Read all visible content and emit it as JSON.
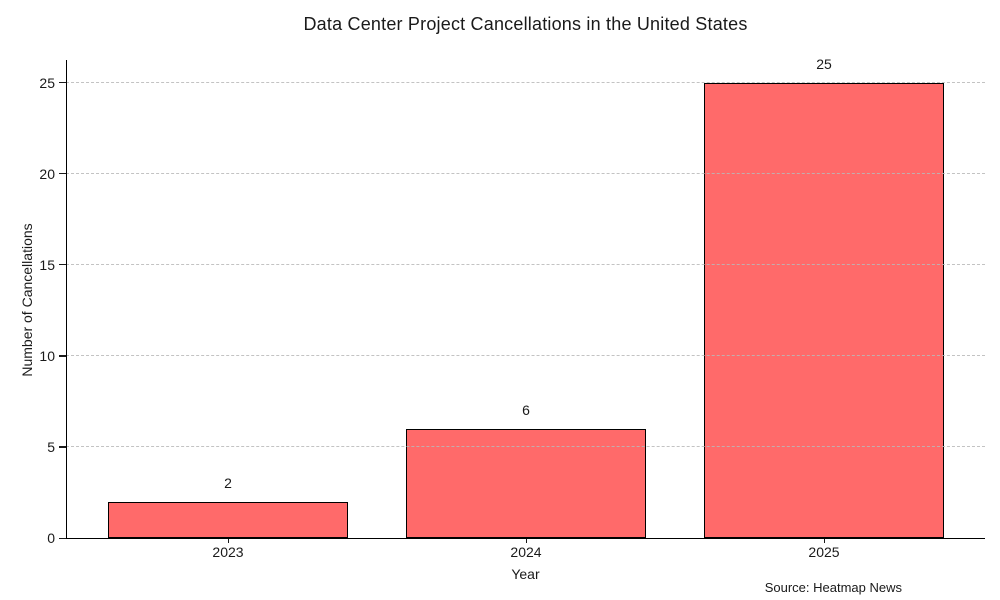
{
  "source": "Source: Heatmap News",
  "chart_data": {
    "type": "bar",
    "title": "Data Center Project Cancellations in the United States",
    "categories": [
      "2023",
      "2024",
      "2025"
    ],
    "values": [
      2,
      6,
      25
    ],
    "xlabel": "Year",
    "ylabel": "Number of Cancellations",
    "ylim": [
      0,
      26.2
    ],
    "yticks": [
      0,
      5,
      10,
      15,
      20,
      25
    ],
    "grid": "horizontal-dashed",
    "legend": "none",
    "bar_color": "#FF6A6A",
    "bar_edge_color": "#000000",
    "grid_color": "#b9b9b9",
    "text_color": "#1a1a1a",
    "background_color": "#ffffff"
  }
}
